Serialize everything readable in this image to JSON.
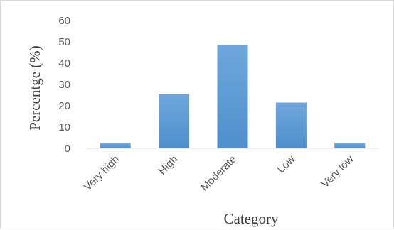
{
  "chart_data": {
    "type": "bar",
    "title": "",
    "xlabel": "Category",
    "ylabel": "Percentge (%)",
    "categories": [
      "Very high",
      "High",
      "Moderate",
      "Low",
      "Very low"
    ],
    "values": [
      2.5,
      25.5,
      48.5,
      21.5,
      2.5
    ],
    "ylim": [
      0,
      60
    ],
    "yticks": [
      0,
      10,
      20,
      30,
      40,
      50,
      60
    ],
    "grid": false,
    "legend": "none",
    "bar_color": "#5b9bd5",
    "bar_gradient_top": "#6ea7dc",
    "bar_gradient_bottom": "#4f8fcc",
    "axis_color": "#d9d9d9",
    "tick_label_color": "#595959",
    "axis_title_color": "#404040"
  }
}
